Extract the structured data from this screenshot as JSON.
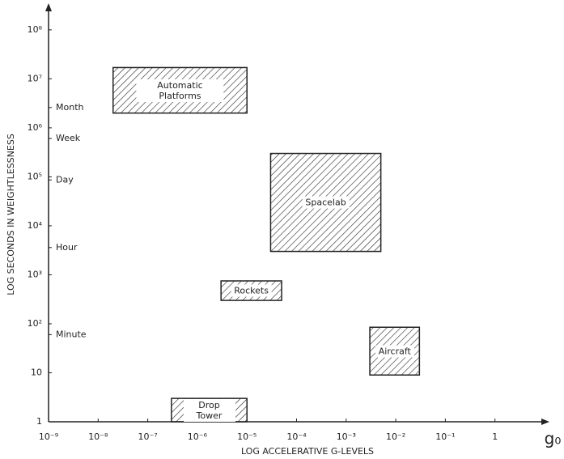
{
  "chart_data": {
    "type": "range-box",
    "x_label": "LOG ACCELERATIVE G-LEVELS",
    "y_label": "LOG SECONDS IN WEIGHTLESSNESS",
    "x_unit": "g₀",
    "x_scale": "log",
    "y_scale": "log",
    "xlim": [
      1e-09,
      10
    ],
    "ylim": [
      1,
      300000000
    ],
    "xticks": [
      {
        "value": 1e-09,
        "label": "10⁻⁹"
      },
      {
        "value": 1e-08,
        "label": "10⁻⁸"
      },
      {
        "value": 1e-07,
        "label": "10⁻⁷"
      },
      {
        "value": 1e-06,
        "label": "10⁻⁶"
      },
      {
        "value": 1e-05,
        "label": "10⁻⁵"
      },
      {
        "value": 0.0001,
        "label": "10⁻⁴"
      },
      {
        "value": 0.001,
        "label": "10⁻³"
      },
      {
        "value": 0.01,
        "label": "10⁻²"
      },
      {
        "value": 0.1,
        "label": "10⁻¹"
      },
      1
    ],
    "yticks": [
      1,
      10,
      {
        "value": 100,
        "label": "10²"
      },
      {
        "value": 1000,
        "label": "10³"
      },
      {
        "value": 10000,
        "label": "10⁴"
      },
      {
        "value": 100000,
        "label": "10⁵"
      },
      {
        "value": 1000000,
        "label": "10⁶"
      },
      {
        "value": 10000000,
        "label": "10⁷"
      },
      {
        "value": 100000000,
        "label": "10⁸"
      }
    ],
    "time_marks": [
      {
        "value": 60,
        "label": "Minute"
      },
      {
        "value": 3600,
        "label": "Hour"
      },
      {
        "value": 86400,
        "label": "Day"
      },
      {
        "value": 604800,
        "label": "Week"
      },
      {
        "value": 2600000,
        "label": "Month"
      }
    ],
    "boxes": [
      {
        "label": "Automatic Platforms",
        "x": [
          2e-08,
          1e-05
        ],
        "y": [
          2000000,
          17000000
        ]
      },
      {
        "label": "Spacelab",
        "x": [
          3e-05,
          0.005
        ],
        "y": [
          3000,
          300000
        ]
      },
      {
        "label": "Rockets",
        "x": [
          3e-06,
          5e-05
        ],
        "y": [
          300,
          750
        ]
      },
      {
        "label": "Aircraft",
        "x": [
          0.003,
          0.03
        ],
        "y": [
          9,
          85
        ]
      },
      {
        "label": "Drop Tower",
        "x": [
          3e-07,
          1e-05
        ],
        "y": [
          1,
          3
        ]
      }
    ],
    "color": "#222222"
  }
}
